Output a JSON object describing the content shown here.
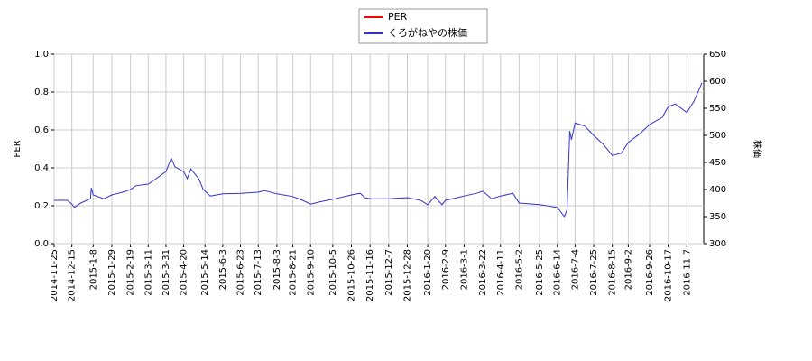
{
  "chart_data": {
    "type": "line",
    "y_label": "PER",
    "y2_label": "株価",
    "xlim": [
      "2014-11-25",
      "2016-11-26"
    ],
    "xticks": [
      "2014-11-25",
      "2014-12-15",
      "2015-1-8",
      "2015-1-29",
      "2015-2-19",
      "2015-3-11",
      "2015-3-31",
      "2015-4-20",
      "2015-5-14",
      "2015-6-3",
      "2015-6-23",
      "2015-7-13",
      "2015-8-3",
      "2015-8-21",
      "2015-9-10",
      "2015-10-5",
      "2015-10-26",
      "2015-11-16",
      "2015-12-7",
      "2015-12-28",
      "2016-1-20",
      "2016-2-9",
      "2016-3-1",
      "2016-3-22",
      "2016-4-11",
      "2016-5-2",
      "2016-5-25",
      "2016-6-14",
      "2016-7-4",
      "2016-7-25",
      "2016-8-15",
      "2016-9-2",
      "2016-9-26",
      "2016-10-17",
      "2016-11-7"
    ],
    "ylim": [
      0,
      1
    ],
    "yticks": [
      {
        "value": 0,
        "label": "0.0"
      },
      0.2,
      0.4,
      0.6,
      0.8,
      {
        "value": 1,
        "label": "1.0"
      }
    ],
    "y2lim": [
      300,
      650
    ],
    "y2ticks": [
      300,
      350,
      400,
      450,
      500,
      550,
      600,
      650
    ],
    "grid": true,
    "legend": "top",
    "x": [
      "2014-11-25",
      "2014-12-10",
      "2014-12-15",
      "2014-12-18",
      "2014-12-25",
      "2015-1-5",
      "2015-1-6",
      "2015-1-8",
      "2015-1-20",
      "2015-1-29",
      "2015-2-10",
      "2015-2-19",
      "2015-2-25",
      "2015-3-11",
      "2015-3-20",
      "2015-3-31",
      "2015-4-6",
      "2015-4-10",
      "2015-4-20",
      "2015-4-24",
      "2015-4-28",
      "2015-5-7",
      "2015-5-12",
      "2015-5-14",
      "2015-5-20",
      "2015-6-3",
      "2015-6-23",
      "2015-7-13",
      "2015-7-20",
      "2015-8-3",
      "2015-8-21",
      "2015-9-1",
      "2015-9-10",
      "2015-9-20",
      "2015-10-5",
      "2015-10-26",
      "2015-11-5",
      "2015-11-10",
      "2015-11-16",
      "2015-12-7",
      "2015-12-28",
      "2016-1-12",
      "2016-1-20",
      "2016-1-28",
      "2016-2-5",
      "2016-2-9",
      "2016-3-1",
      "2016-3-15",
      "2016-3-22",
      "2016-4-1",
      "2016-4-11",
      "2016-4-25",
      "2016-5-2",
      "2016-5-25",
      "2016-6-14",
      "2016-6-22",
      "2016-6-25",
      "2016-6-28",
      "2016-6-30",
      "2016-7-4",
      "2016-7-15",
      "2016-7-25",
      "2016-8-5",
      "2016-8-15",
      "2016-8-25",
      "2016-9-2",
      "2016-9-15",
      "2016-9-26",
      "2016-10-10",
      "2016-10-17",
      "2016-10-25",
      "2016-11-7",
      "2016-11-15",
      "2016-11-24"
    ],
    "series": [
      {
        "name": "PER",
        "color": "#ff0000",
        "values": [
          null,
          null,
          null,
          null,
          null,
          null,
          null,
          null,
          null,
          null,
          null,
          null,
          null,
          null,
          null,
          null,
          null,
          null,
          null,
          null,
          null,
          null,
          null,
          null,
          null,
          null,
          null,
          null,
          null,
          null,
          null,
          null,
          null,
          null,
          null,
          null,
          null,
          null,
          null,
          null,
          null,
          null,
          null,
          null,
          null,
          null,
          null,
          null,
          null,
          null,
          null,
          null,
          null,
          null,
          null,
          null,
          null,
          null,
          null,
          null,
          null,
          null,
          null,
          null,
          null,
          null,
          null,
          null,
          null,
          null,
          null,
          null,
          null,
          null
        ]
      },
      {
        "name": "くろがねやの株価",
        "color": "#3333cc",
        "axis": "y2",
        "values": [
          380,
          380,
          373,
          367,
          375,
          383,
          403,
          390,
          383,
          390,
          395,
          400,
          407,
          410,
          420,
          433,
          458,
          442,
          433,
          420,
          438,
          420,
          400,
          397,
          388,
          392,
          393,
          395,
          398,
          392,
          387,
          380,
          373,
          377,
          382,
          390,
          393,
          385,
          383,
          383,
          385,
          380,
          372,
          387,
          372,
          380,
          388,
          393,
          397,
          383,
          388,
          393,
          375,
          372,
          367,
          350,
          363,
          508,
          492,
          523,
          517,
          500,
          483,
          463,
          467,
          487,
          503,
          520,
          533,
          553,
          558,
          542,
          563,
          597
        ]
      }
    ]
  }
}
